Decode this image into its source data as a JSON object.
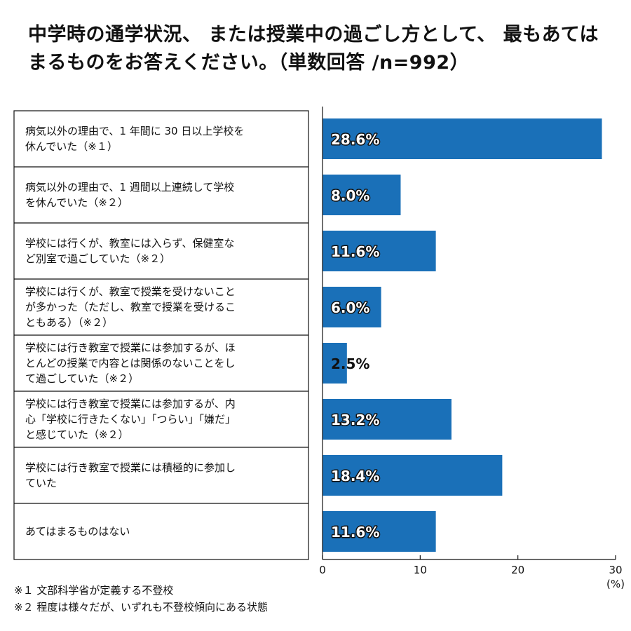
{
  "chart_data": {
    "type": "bar",
    "orientation": "horizontal",
    "title": "中学時の通学状況、 または授業中の過ごし方として、 最もあてはまるものをお答えください。（単数回答 /n=992）",
    "categories": [
      [
        "病気以外の理由で、1 年間に 30 日以上学校を",
        "休んでいた（※１）"
      ],
      [
        "病気以外の理由で、1 週間以上連続して学校",
        "を休んでいた（※２）"
      ],
      [
        "学校には行くが、教室には入らず、保健室な",
        "ど別室で過ごしていた（※２）"
      ],
      [
        "学校には行くが、教室で授業を受けないこと",
        "が多かった（ただし、教室で授業を受けるこ",
        "ともある）（※２）"
      ],
      [
        "学校には行き教室で授業には参加するが、ほ",
        "とんどの授業で内容とは関係のないことをし",
        "て過ごしていた（※２）"
      ],
      [
        "学校には行き教室で授業には参加するが、内",
        "心「学校に行きたくない」「つらい」「嫌だ」",
        "と感じていた（※２）"
      ],
      [
        "学校には行き教室で授業には積極的に参加し",
        "ていた"
      ],
      [
        "あてはまるものはない"
      ]
    ],
    "values": [
      28.6,
      8.0,
      11.6,
      6.0,
      2.5,
      13.2,
      18.4,
      11.6
    ],
    "value_labels": [
      "28.6%",
      "8.0%",
      "11.6%",
      "6.0%",
      "2.5%",
      "13.2%",
      "18.4%",
      "11.6%"
    ],
    "xlim": [
      0,
      30
    ],
    "xticks": [
      0,
      10,
      20,
      30
    ],
    "x_unit": "(%)",
    "bar_color": "#1a70b8",
    "grid": false
  },
  "notes": [
    "※１ 文部科学省が定義する不登校",
    "※２ 程度は様々だが、いずれも不登校傾向にある状態"
  ]
}
